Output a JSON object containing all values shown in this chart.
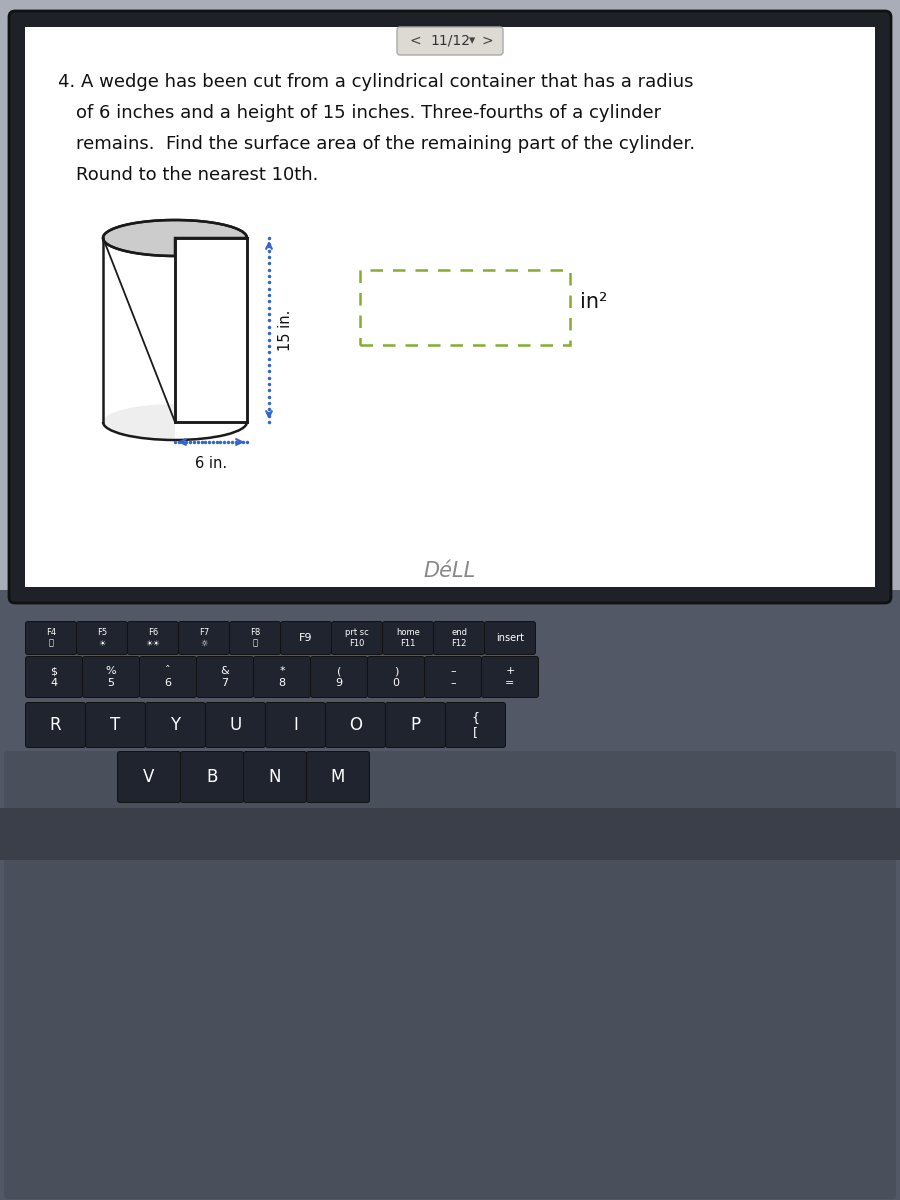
{
  "nav_text": "11/12",
  "problem_number": "4.",
  "line1": "A wedge has been cut from a cylindrical container that has a radius",
  "line2": "of 6 inches and a height of 15 inches. Three-fourths of a cylinder",
  "line3": "remains.  Find the surface area of the remaining part of the cylinder.",
  "line4": "Round to the nearest 10th.",
  "label_6in": "6 in.",
  "label_15in": "15 in.",
  "label_in2": "in²",
  "bg_laptop": "#a8adb8",
  "bg_screen": "#f8f7f4",
  "bg_content": "#ffffff",
  "edge_color": "#1a1a1a",
  "arrow_color": "#3366cc",
  "dashed_color": "#88aa33",
  "dell_bar": "#282c36",
  "dell_text": "#888888",
  "key_color": "#20242e",
  "key_text": "#ffffff",
  "keyboard_bg": "#525866",
  "bezel_color": "#1e2228"
}
